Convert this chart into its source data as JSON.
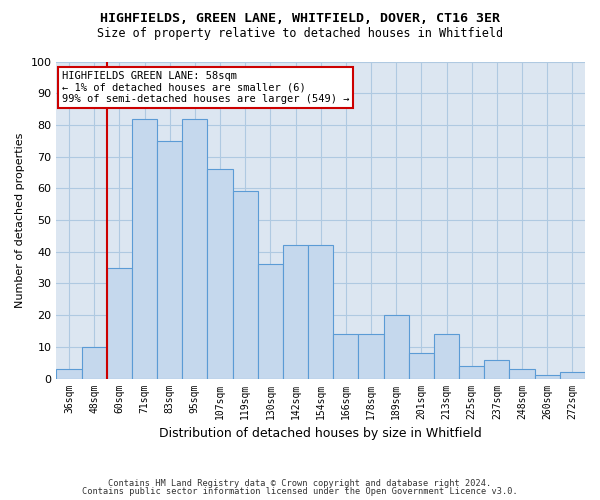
{
  "title1": "HIGHFIELDS, GREEN LANE, WHITFIELD, DOVER, CT16 3ER",
  "title2": "Size of property relative to detached houses in Whitfield",
  "xlabel": "Distribution of detached houses by size in Whitfield",
  "ylabel": "Number of detached properties",
  "categories": [
    "36sqm",
    "48sqm",
    "60sqm",
    "71sqm",
    "83sqm",
    "95sqm",
    "107sqm",
    "119sqm",
    "130sqm",
    "142sqm",
    "154sqm",
    "166sqm",
    "178sqm",
    "189sqm",
    "201sqm",
    "213sqm",
    "225sqm",
    "237sqm",
    "248sqm",
    "260sqm",
    "272sqm"
  ],
  "values": [
    3,
    10,
    35,
    82,
    75,
    82,
    66,
    59,
    36,
    42,
    42,
    14,
    14,
    20,
    8,
    14,
    4,
    6,
    3,
    1,
    2
  ],
  "bar_color": "#c5d8ed",
  "bar_edge_color": "#5b9bd5",
  "grid_color": "#afc9e1",
  "background_color": "#dce6f1",
  "annotation_text_line1": "HIGHFIELDS GREEN LANE: 58sqm",
  "annotation_text_line2": "← 1% of detached houses are smaller (6)",
  "annotation_text_line3": "99% of semi-detached houses are larger (549) →",
  "vline_color": "#cc0000",
  "annotation_box_color": "#ffffff",
  "annotation_box_edge_color": "#cc0000",
  "footer1": "Contains HM Land Registry data © Crown copyright and database right 2024.",
  "footer2": "Contains public sector information licensed under the Open Government Licence v3.0.",
  "ylim": [
    0,
    100
  ],
  "yticks": [
    0,
    10,
    20,
    30,
    40,
    50,
    60,
    70,
    80,
    90,
    100
  ],
  "vline_x": 1.5
}
